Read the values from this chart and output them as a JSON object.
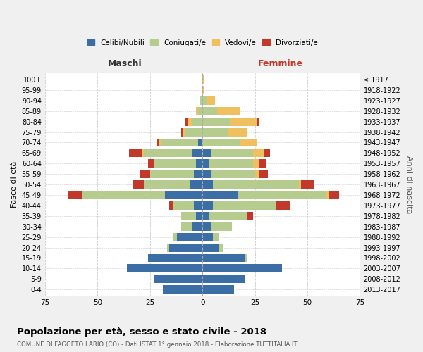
{
  "age_groups": [
    "0-4",
    "5-9",
    "10-14",
    "15-19",
    "20-24",
    "25-29",
    "30-34",
    "35-39",
    "40-44",
    "45-49",
    "50-54",
    "55-59",
    "60-64",
    "65-69",
    "70-74",
    "75-79",
    "80-84",
    "85-89",
    "90-94",
    "95-99",
    "100+"
  ],
  "birth_years": [
    "2013-2017",
    "2008-2012",
    "2003-2007",
    "1998-2002",
    "1993-1997",
    "1988-1992",
    "1983-1987",
    "1978-1982",
    "1973-1977",
    "1968-1972",
    "1963-1967",
    "1958-1962",
    "1953-1957",
    "1948-1952",
    "1943-1947",
    "1938-1942",
    "1933-1937",
    "1928-1932",
    "1923-1927",
    "1918-1922",
    "≤ 1917"
  ],
  "colors": {
    "celibi": "#3a6ea5",
    "coniugati": "#b5cc8e",
    "vedovi": "#f0c060",
    "divorziati": "#c0392b"
  },
  "maschi": {
    "celibi": [
      19,
      23,
      36,
      26,
      16,
      12,
      5,
      3,
      4,
      18,
      6,
      4,
      3,
      5,
      2,
      0,
      0,
      0,
      0,
      0,
      0
    ],
    "coniugati": [
      0,
      0,
      0,
      0,
      1,
      2,
      5,
      7,
      10,
      39,
      22,
      21,
      20,
      23,
      18,
      8,
      5,
      2,
      1,
      0,
      0
    ],
    "vedovi": [
      0,
      0,
      0,
      0,
      0,
      0,
      0,
      0,
      0,
      0,
      0,
      0,
      0,
      1,
      1,
      1,
      2,
      1,
      0,
      0,
      0
    ],
    "divorziati": [
      0,
      0,
      0,
      0,
      0,
      0,
      0,
      0,
      2,
      7,
      5,
      5,
      3,
      6,
      1,
      1,
      1,
      0,
      0,
      0,
      0
    ]
  },
  "femmine": {
    "celibi": [
      15,
      20,
      38,
      20,
      8,
      5,
      4,
      3,
      5,
      17,
      5,
      4,
      3,
      4,
      0,
      0,
      0,
      0,
      0,
      0,
      0
    ],
    "coniugati": [
      0,
      0,
      0,
      1,
      2,
      3,
      10,
      18,
      30,
      42,
      41,
      21,
      21,
      20,
      18,
      12,
      13,
      7,
      2,
      0,
      0
    ],
    "vedovi": [
      0,
      0,
      0,
      0,
      0,
      0,
      0,
      0,
      0,
      1,
      1,
      2,
      3,
      5,
      8,
      9,
      13,
      11,
      4,
      1,
      1
    ],
    "divorziati": [
      0,
      0,
      0,
      0,
      0,
      0,
      0,
      3,
      7,
      5,
      6,
      4,
      3,
      3,
      0,
      0,
      1,
      0,
      0,
      0,
      0
    ]
  },
  "xlim": 75,
  "title": "Popolazione per età, sesso e stato civile - 2018",
  "subtitle": "COMUNE DI FAGGETO LARIO (CO) - Dati ISTAT 1° gennaio 2018 - Elaborazione TUTTITALIA.IT",
  "ylabel": "Fasce di età",
  "ylabel_right": "Anni di nascita",
  "legend_labels": [
    "Celibi/Nubili",
    "Coniugati/e",
    "Vedovi/e",
    "Divorziati/e"
  ],
  "maschi_label": "Maschi",
  "femmine_label": "Femmine",
  "background_color": "#f0f0f0",
  "plot_background": "#ffffff",
  "grid_color": "#cccccc",
  "label_color": "#555555"
}
